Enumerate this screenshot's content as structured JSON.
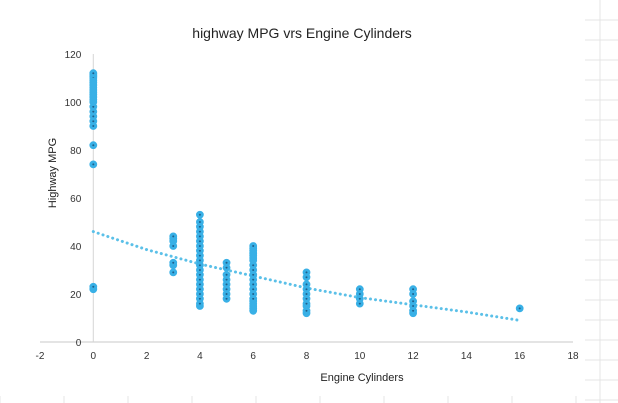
{
  "chart_data": {
    "type": "scatter",
    "title": "highway MPG vrs Engine Cylinders",
    "xlabel": "Engine Cylinders",
    "ylabel": "Highway MPG",
    "xlim": [
      -2,
      18
    ],
    "ylim": [
      0,
      120
    ],
    "xticks": [
      "-2",
      "0",
      "2",
      "4",
      "6",
      "8",
      "10",
      "12",
      "14",
      "16",
      "18"
    ],
    "yticks": [
      "0",
      "20",
      "40",
      "60",
      "80",
      "100",
      "120"
    ],
    "grid": false,
    "legend": "none",
    "point_color": "#39b0e6",
    "point_edge_color": "#1f5f8a",
    "trendline": {
      "type": "exponential",
      "color": "#5bc0e8",
      "style": "dotted",
      "x": [
        0,
        2,
        4,
        6,
        8,
        10,
        12,
        14,
        16
      ],
      "y": [
        46,
        38.5,
        32.5,
        27.5,
        22.5,
        18.5,
        15.5,
        12.5,
        9
      ]
    },
    "series": [
      {
        "x": [
          0,
          0,
          0,
          0,
          0,
          0,
          0,
          0,
          0,
          0,
          0,
          0,
          0,
          0,
          0,
          0,
          0,
          0,
          0,
          0,
          0,
          0,
          0,
          0,
          3,
          3,
          3,
          3,
          3,
          3,
          3,
          4,
          4,
          4,
          4,
          4,
          4,
          4,
          4,
          4,
          4,
          4,
          4,
          4,
          4,
          4,
          4,
          4,
          4,
          4,
          4,
          5,
          5,
          5,
          5,
          5,
          5,
          5,
          5,
          6,
          6,
          6,
          6,
          6,
          6,
          6,
          6,
          6,
          6,
          6,
          6,
          6,
          6,
          6,
          6,
          6,
          6,
          6,
          6,
          8,
          8,
          8,
          8,
          8,
          8,
          8,
          8,
          8,
          8,
          10,
          10,
          10,
          10,
          12,
          12,
          12,
          12,
          12,
          12,
          16
        ],
        "y": [
          22,
          23,
          74,
          82,
          90,
          92,
          94,
          96,
          98,
          100,
          101,
          102,
          103,
          104,
          105,
          106,
          107,
          108,
          109,
          110,
          111,
          111.5,
          110.5,
          112,
          29,
          32,
          33,
          40,
          42,
          43,
          44,
          15,
          16,
          18,
          20,
          22,
          24,
          26,
          28,
          30,
          32,
          34,
          36,
          38,
          40,
          42,
          44,
          46,
          48,
          50,
          53,
          18,
          20,
          22,
          24,
          26,
          28,
          31,
          33,
          13,
          14,
          15,
          16,
          17,
          18,
          20,
          22,
          24,
          26,
          28,
          30,
          32,
          34,
          35,
          36,
          37,
          38,
          39,
          40,
          12,
          13,
          15,
          16,
          18,
          20,
          22,
          24,
          27,
          29,
          16,
          18,
          20,
          22,
          12,
          13,
          15,
          17,
          20,
          22,
          14
        ]
      }
    ]
  }
}
